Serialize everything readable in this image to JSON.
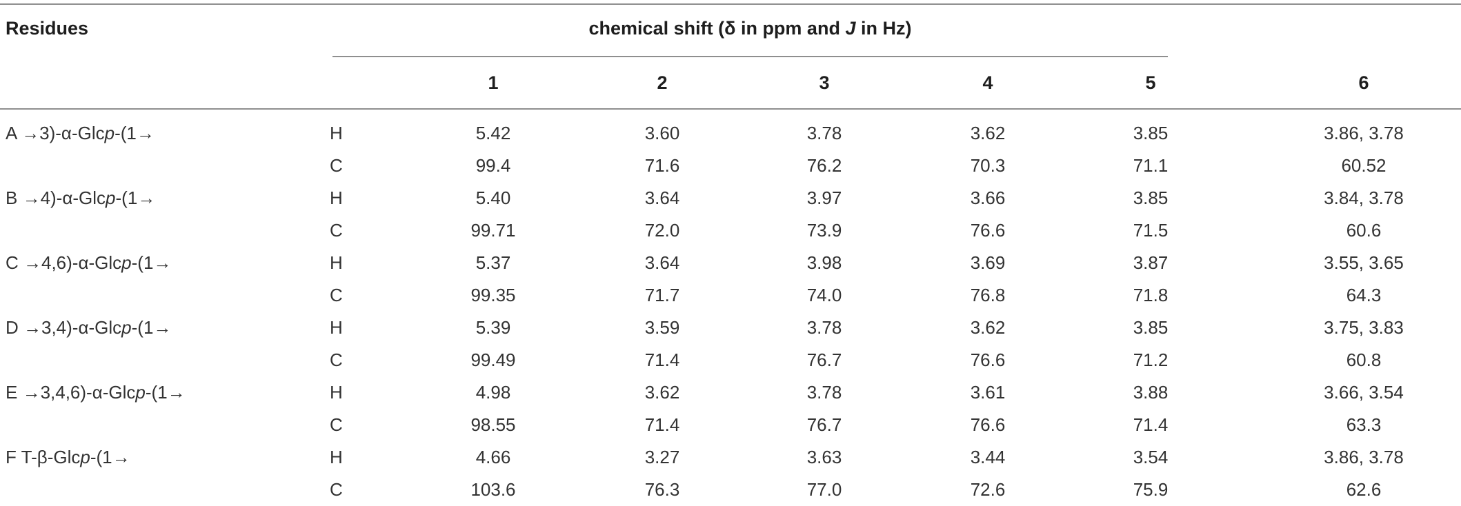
{
  "header": {
    "residues": "Residues",
    "span_title_prefix": "chemical shift (δ in ppm and ",
    "span_title_italic": "J",
    "span_title_suffix": " in Hz)",
    "columns": [
      "1",
      "2",
      "3",
      "4",
      "5",
      "6"
    ]
  },
  "rows": [
    {
      "residue_pre": "A →3)-α-Glc",
      "residue_ital": "p",
      "residue_post": "-(1→",
      "atom": "H",
      "values": [
        "5.42",
        "3.60",
        "3.78",
        "3.62",
        "3.85",
        "3.86, 3.78"
      ]
    },
    {
      "residue_pre": "",
      "residue_ital": "",
      "residue_post": "",
      "atom": "C",
      "values": [
        "99.4",
        "71.6",
        "76.2",
        "70.3",
        "71.1",
        "60.52"
      ]
    },
    {
      "residue_pre": "B →4)-α-Glc",
      "residue_ital": "p",
      "residue_post": "-(1→",
      "atom": "H",
      "values": [
        "5.40",
        "3.64",
        "3.97",
        "3.66",
        "3.85",
        "3.84, 3.78"
      ]
    },
    {
      "residue_pre": "",
      "residue_ital": "",
      "residue_post": "",
      "atom": "C",
      "values": [
        "99.71",
        "72.0",
        "73.9",
        "76.6",
        "71.5",
        "60.6"
      ]
    },
    {
      "residue_pre": "C →4,6)-α-Glc",
      "residue_ital": "p",
      "residue_post": "-(1→",
      "atom": "H",
      "values": [
        "5.37",
        "3.64",
        "3.98",
        "3.69",
        "3.87",
        "3.55, 3.65"
      ]
    },
    {
      "residue_pre": "",
      "residue_ital": "",
      "residue_post": "",
      "atom": "C",
      "values": [
        "99.35",
        "71.7",
        "74.0",
        "76.8",
        "71.8",
        "64.3"
      ]
    },
    {
      "residue_pre": "D →3,4)-α-Glc",
      "residue_ital": "p",
      "residue_post": "-(1→",
      "atom": "H",
      "values": [
        "5.39",
        "3.59",
        "3.78",
        "3.62",
        "3.85",
        "3.75, 3.83"
      ]
    },
    {
      "residue_pre": "",
      "residue_ital": "",
      "residue_post": "",
      "atom": "C",
      "values": [
        "99.49",
        "71.4",
        "76.7",
        "76.6",
        "71.2",
        "60.8"
      ]
    },
    {
      "residue_pre": "E →3,4,6)-α-Glc",
      "residue_ital": "p",
      "residue_post": "-(1→",
      "atom": "H",
      "values": [
        "4.98",
        "3.62",
        "3.78",
        "3.61",
        "3.88",
        "3.66, 3.54"
      ]
    },
    {
      "residue_pre": "",
      "residue_ital": "",
      "residue_post": "",
      "atom": "C",
      "values": [
        "98.55",
        "71.4",
        "76.7",
        "76.6",
        "71.4",
        "63.3"
      ]
    },
    {
      "residue_pre": "F T-β-Glc",
      "residue_ital": "p",
      "residue_post": "-(1→",
      "atom": "H",
      "values": [
        "4.66",
        "3.27",
        "3.63",
        "3.44",
        "3.54",
        "3.86, 3.78"
      ]
    },
    {
      "residue_pre": "",
      "residue_ital": "",
      "residue_post": "",
      "atom": "C",
      "values": [
        "103.6",
        "76.3",
        "77.0",
        "72.6",
        "75.9",
        "62.6"
      ]
    }
  ]
}
